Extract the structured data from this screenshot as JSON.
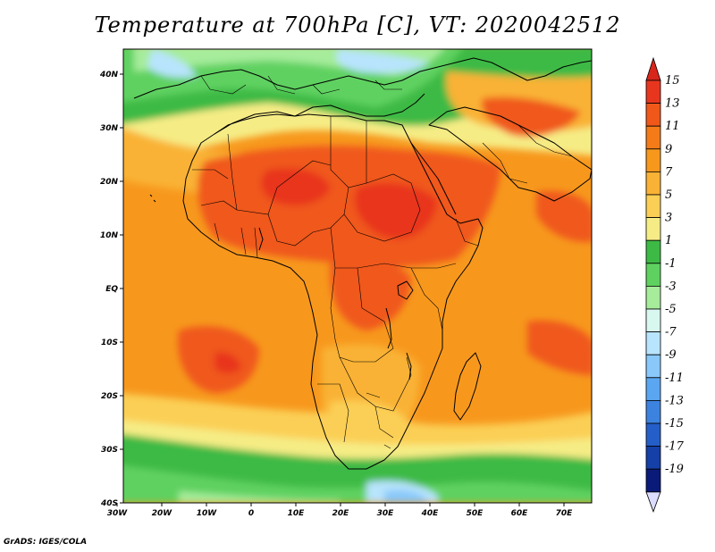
{
  "title": "Temperature at 700hPa [C], VT: 2020042512",
  "credit": "GrADS: IGES/COLA",
  "lat_labels": [
    "40N",
    "30N",
    "20N",
    "10N",
    "EQ",
    "10S",
    "20S",
    "30S",
    "40S"
  ],
  "lon_labels": [
    "30W",
    "20W",
    "10W",
    "0",
    "10E",
    "20E",
    "30E",
    "40E",
    "50E",
    "60E",
    "70E"
  ],
  "colorbar": {
    "labels": [
      "15",
      "13",
      "11",
      "9",
      "7",
      "5",
      "3",
      "1",
      "-1",
      "-3",
      "-5",
      "-7",
      "-9",
      "-11",
      "-13",
      "-15",
      "-17",
      "-19"
    ],
    "colors": [
      "#e8361e",
      "#f0581a",
      "#f47b18",
      "#f7981d",
      "#f9b235",
      "#fbcf55",
      "#f6ec85",
      "#3dba45",
      "#5fd160",
      "#a6ec9b",
      "#d8f7ef",
      "#b8e4fd",
      "#89c8f9",
      "#5ba6f0",
      "#3c83e0",
      "#245fc9",
      "#1440a8",
      "#0a1a78"
    ],
    "top_color": "#d8261a",
    "bottom_color": "#dcdcff"
  },
  "field_colors": {
    "ocean_warm": "#f7981d",
    "land_hot": "#f0581a",
    "hot_core": "#e8361e",
    "mid": "#f9b235",
    "light": "#fbcf55",
    "pale": "#f6ec85",
    "green": "#3dba45",
    "green_light": "#5fd160",
    "mint": "#a6ec9b",
    "cyan": "#d8f7ef",
    "blue_light": "#b8e4fd",
    "blue": "#89c8f9"
  }
}
